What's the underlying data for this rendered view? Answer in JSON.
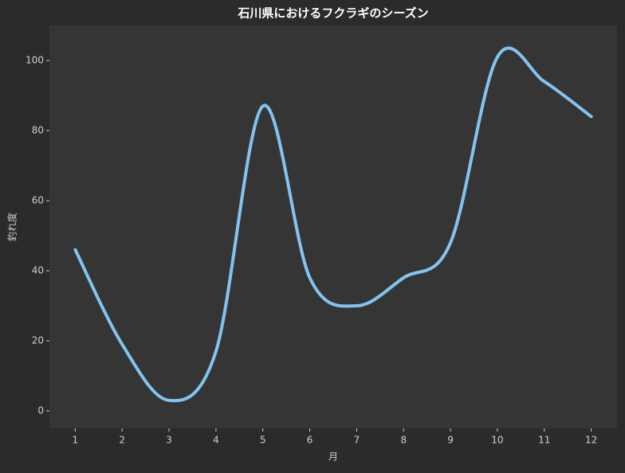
{
  "chart_data": {
    "type": "line",
    "title": "石川県におけるフクラギのシーズン",
    "x_label": "月",
    "y_label": "釣れ度",
    "x": [
      1,
      2,
      3,
      4,
      5,
      6,
      7,
      8,
      9,
      10,
      11,
      12
    ],
    "series": [
      {
        "name": "釣れ度",
        "color": "#82c4f0",
        "values": [
          46,
          19,
          3,
          17,
          87,
          38,
          30,
          38,
          48,
          101,
          94,
          84
        ]
      }
    ],
    "xlim": [
      0.45,
      12.55
    ],
    "ylim": [
      -5,
      110
    ],
    "xticks": [
      1,
      2,
      3,
      4,
      5,
      6,
      7,
      8,
      9,
      10,
      11,
      12
    ],
    "yticks": [
      0,
      20,
      40,
      60,
      80,
      100
    ],
    "grid": false
  }
}
